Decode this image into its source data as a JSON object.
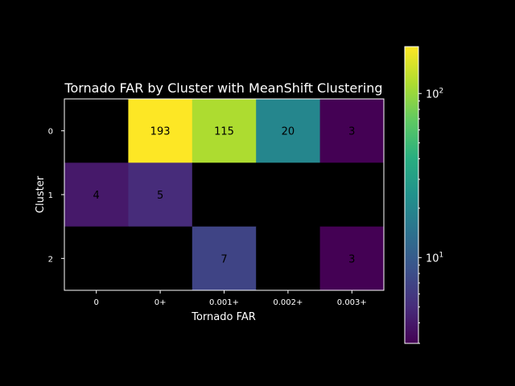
{
  "chart_data": {
    "type": "heatmap",
    "title": "Tornado FAR by Cluster with MeanShift Clustering",
    "xlabel": "Tornado FAR",
    "ylabel": "Cluster",
    "x_categories": [
      "0",
      "0+",
      "0.001+",
      "0.002+",
      "0.003+"
    ],
    "y_categories": [
      "0",
      "1",
      "2"
    ],
    "values": [
      [
        null,
        193,
        115,
        20,
        3
      ],
      [
        4,
        5,
        null,
        null,
        null
      ],
      [
        null,
        null,
        7,
        null,
        3
      ]
    ],
    "color_scale": "log",
    "colormap": "viridis",
    "empty_cell_color": "#000000",
    "vmin": 3,
    "vmax": 193,
    "colorbar_ticks": [
      {
        "base": "10",
        "exp": "1",
        "value": 10
      },
      {
        "base": "10",
        "exp": "2",
        "value": 100
      }
    ],
    "grid": false
  }
}
